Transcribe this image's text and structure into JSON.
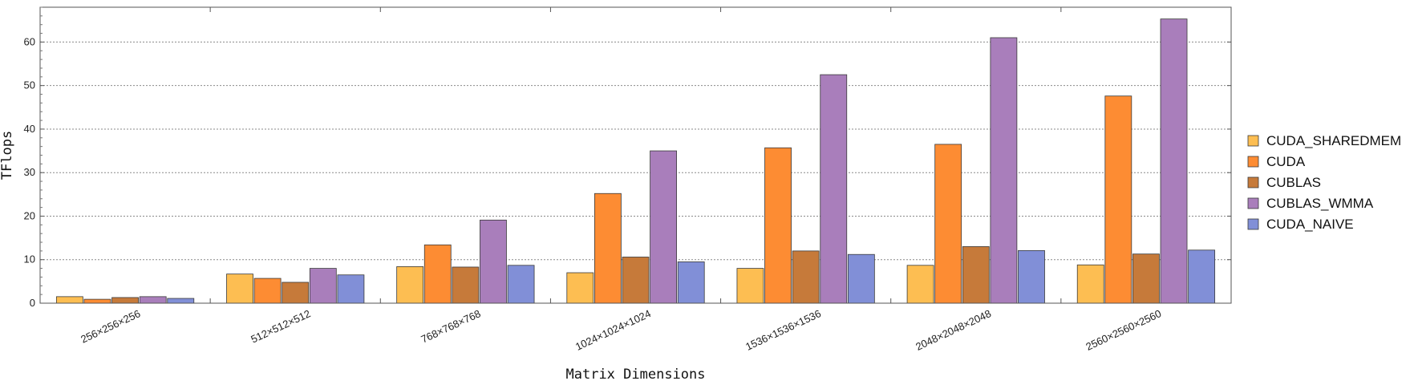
{
  "chart_data": {
    "type": "bar",
    "title": "",
    "xlabel": "Matrix Dimensions",
    "ylabel": "TFlops",
    "ylim": [
      0,
      68
    ],
    "yticks": [
      0,
      10,
      20,
      30,
      40,
      50,
      60
    ],
    "grid": true,
    "legend_position": "right",
    "categories": [
      "256×256×256",
      "512×512×512",
      "768×768×768",
      "1024×1024×1024",
      "1536×1536×1536",
      "2048×2048×2048",
      "2560×2560×2560"
    ],
    "series": [
      {
        "name": "CUDA_SHAREDMEM",
        "color": "#FDBE52",
        "values": [
          1.5,
          6.7,
          8.4,
          7.0,
          8.0,
          8.7,
          8.8
        ]
      },
      {
        "name": "CUDA",
        "color": "#FD8C33",
        "values": [
          0.9,
          5.7,
          13.4,
          25.2,
          35.7,
          36.5,
          47.6
        ]
      },
      {
        "name": "CUBLAS",
        "color": "#C67A3A",
        "values": [
          1.3,
          4.8,
          8.3,
          10.6,
          12.0,
          13.0,
          11.3
        ]
      },
      {
        "name": "CUBLAS_WMMA",
        "color": "#A97EBB",
        "values": [
          1.5,
          8.0,
          19.1,
          35.0,
          52.5,
          61.0,
          65.3
        ]
      },
      {
        "name": "CUDA_NAIVE",
        "color": "#818FD7",
        "values": [
          1.1,
          6.5,
          8.7,
          9.5,
          11.2,
          12.1,
          12.2
        ]
      }
    ]
  }
}
